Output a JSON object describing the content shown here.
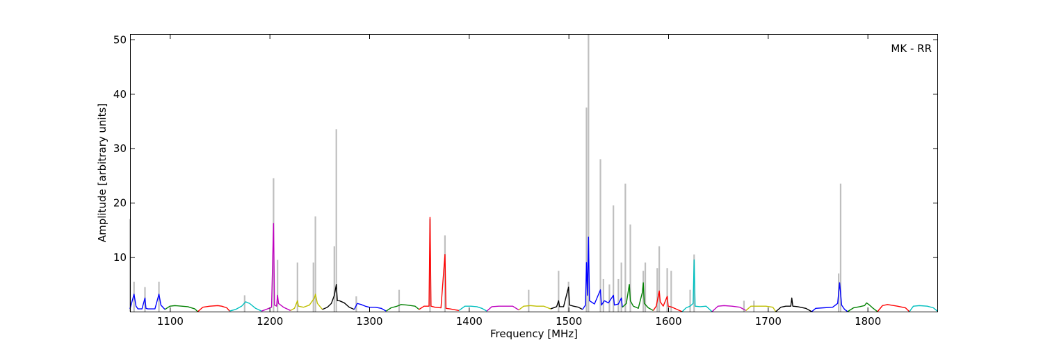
{
  "chart_data": {
    "type": "line",
    "title": "",
    "annotation": "MK - RR",
    "xlabel": "Frequency [MHz]",
    "ylabel": "Amplitude [arbitrary units]",
    "xlim": [
      1060,
      1870
    ],
    "ylim": [
      0,
      51
    ],
    "grid": false,
    "x_ticks": [
      1100,
      1200,
      1300,
      1400,
      1500,
      1600,
      1700,
      1800
    ],
    "y_ticks": [
      10,
      20,
      30,
      40,
      50
    ],
    "colors": {
      "raw": "#bfbfbf",
      "axis": "#000000"
    },
    "raw_spikes": [
      {
        "x": 1060,
        "y": 17
      },
      {
        "x": 1064,
        "y": 5.5
      },
      {
        "x": 1075,
        "y": 4.5
      },
      {
        "x": 1089,
        "y": 5.5
      },
      {
        "x": 1175,
        "y": 3.0
      },
      {
        "x": 1204,
        "y": 24.5
      },
      {
        "x": 1208,
        "y": 9.5
      },
      {
        "x": 1228,
        "y": 9.0
      },
      {
        "x": 1244,
        "y": 9.0
      },
      {
        "x": 1246,
        "y": 17.5
      },
      {
        "x": 1265,
        "y": 12.0
      },
      {
        "x": 1267,
        "y": 33.5
      },
      {
        "x": 1287,
        "y": 2.8
      },
      {
        "x": 1330,
        "y": 4.0
      },
      {
        "x": 1361,
        "y": 17.0
      },
      {
        "x": 1376,
        "y": 14.0
      },
      {
        "x": 1460,
        "y": 4.0
      },
      {
        "x": 1490,
        "y": 7.5
      },
      {
        "x": 1500,
        "y": 5.5
      },
      {
        "x": 1518,
        "y": 37.5
      },
      {
        "x": 1520,
        "y": 51
      },
      {
        "x": 1532,
        "y": 28.0
      },
      {
        "x": 1535,
        "y": 6.0
      },
      {
        "x": 1541,
        "y": 5.0
      },
      {
        "x": 1545,
        "y": 19.5
      },
      {
        "x": 1550,
        "y": 6.0
      },
      {
        "x": 1553,
        "y": 9.0
      },
      {
        "x": 1557,
        "y": 23.5
      },
      {
        "x": 1562,
        "y": 16.0
      },
      {
        "x": 1575,
        "y": 7.5
      },
      {
        "x": 1577,
        "y": 9.0
      },
      {
        "x": 1589,
        "y": 8.0
      },
      {
        "x": 1591,
        "y": 12.0
      },
      {
        "x": 1599,
        "y": 8.0
      },
      {
        "x": 1603,
        "y": 7.5
      },
      {
        "x": 1622,
        "y": 4.0
      },
      {
        "x": 1626,
        "y": 10.5
      },
      {
        "x": 1676,
        "y": 2.0
      },
      {
        "x": 1686,
        "y": 2.0
      },
      {
        "x": 1771,
        "y": 7.0
      },
      {
        "x": 1773,
        "y": 23.5
      }
    ],
    "series": [
      {
        "color": "#0000ff",
        "x": [
          1060,
          1064,
          1066,
          1068,
          1072,
          1075,
          1076,
          1078,
          1085,
          1089,
          1091,
          1095
        ],
        "y": [
          0.5,
          3.2,
          1.0,
          0.5,
          0.5,
          2.5,
          0.6,
          0.5,
          0.5,
          3.2,
          1.2,
          0.4
        ]
      },
      {
        "color": "#008000",
        "x": [
          1095,
          1100,
          1105,
          1112,
          1118,
          1125,
          1128
        ],
        "y": [
          0.4,
          1.0,
          1.1,
          1.0,
          0.9,
          0.5,
          0.0
        ]
      },
      {
        "color": "#ff0000",
        "x": [
          1128,
          1133,
          1140,
          1148,
          1152,
          1157,
          1160
        ],
        "y": [
          0.0,
          0.8,
          1.0,
          1.1,
          1.0,
          0.7,
          0.1
        ]
      },
      {
        "color": "#00bfbf",
        "x": [
          1160,
          1166,
          1172,
          1176,
          1180,
          1186,
          1192
        ],
        "y": [
          0.1,
          0.4,
          1.0,
          1.8,
          1.5,
          0.6,
          0.1
        ]
      },
      {
        "color": "#bf00bf",
        "x": [
          1192,
          1198,
          1202,
          1204,
          1205,
          1207,
          1208,
          1209,
          1214,
          1221
        ],
        "y": [
          0.1,
          0.5,
          0.8,
          16.2,
          1.2,
          1.0,
          3.0,
          1.5,
          0.8,
          0.2
        ]
      },
      {
        "color": "#bfbf00",
        "x": [
          1221,
          1225,
          1228,
          1229,
          1234,
          1240,
          1245,
          1246,
          1248,
          1253
        ],
        "y": [
          0.2,
          0.6,
          2.0,
          1.0,
          0.8,
          1.2,
          2.5,
          3.2,
          1.5,
          0.4
        ]
      },
      {
        "color": "#000000",
        "x": [
          1253,
          1258,
          1262,
          1265,
          1267,
          1268,
          1270,
          1275,
          1280,
          1285
        ],
        "y": [
          0.4,
          0.8,
          1.5,
          3.0,
          5.0,
          2.0,
          2.0,
          1.6,
          0.8,
          0.4
        ]
      },
      {
        "color": "#0000ff",
        "x": [
          1285,
          1288,
          1292,
          1296,
          1300,
          1306,
          1312,
          1317
        ],
        "y": [
          0.4,
          1.5,
          1.3,
          1.0,
          0.8,
          0.8,
          0.6,
          0.1
        ]
      },
      {
        "color": "#008000",
        "x": [
          1317,
          1322,
          1328,
          1332,
          1338,
          1346,
          1350
        ],
        "y": [
          0.1,
          0.7,
          1.0,
          1.3,
          1.2,
          1.0,
          0.4
        ]
      },
      {
        "color": "#ff0000",
        "x": [
          1350,
          1355,
          1360,
          1361,
          1362,
          1366,
          1372,
          1376,
          1377,
          1381,
          1390
        ],
        "y": [
          0.4,
          1.0,
          1.0,
          17.3,
          1.0,
          0.8,
          0.7,
          10.5,
          0.6,
          0.5,
          0.2
        ]
      },
      {
        "color": "#00bfbf",
        "x": [
          1390,
          1396,
          1402,
          1408,
          1413,
          1418
        ],
        "y": [
          0.2,
          1.0,
          1.0,
          0.9,
          0.6,
          0.1
        ]
      },
      {
        "color": "#bf00bf",
        "x": [
          1418,
          1423,
          1430,
          1438,
          1444,
          1450
        ],
        "y": [
          0.1,
          0.9,
          1.0,
          1.0,
          1.0,
          0.3
        ]
      },
      {
        "color": "#bfbf00",
        "x": [
          1450,
          1455,
          1462,
          1468,
          1475,
          1482
        ],
        "y": [
          0.3,
          1.0,
          1.1,
          1.0,
          1.0,
          0.5
        ]
      },
      {
        "color": "#000000",
        "x": [
          1482,
          1488,
          1490,
          1491,
          1495,
          1500,
          1501,
          1505,
          1510,
          1514
        ],
        "y": [
          0.5,
          0.9,
          2.0,
          0.9,
          0.9,
          4.5,
          1.2,
          1.0,
          0.8,
          0.4
        ]
      },
      {
        "color": "#0000ff",
        "x": [
          1514,
          1517,
          1518,
          1519,
          1520,
          1521,
          1526,
          1532,
          1533,
          1536,
          1540,
          1545,
          1546,
          1550,
          1553,
          1554
        ],
        "y": [
          0.4,
          1.2,
          9.0,
          3.0,
          13.7,
          2.0,
          1.4,
          4.0,
          1.2,
          2.0,
          1.6,
          3.0,
          1.2,
          1.4,
          2.5,
          0.8
        ]
      },
      {
        "color": "#008000",
        "x": [
          1554,
          1558,
          1561,
          1562,
          1565,
          1570,
          1574,
          1575,
          1576,
          1580,
          1585
        ],
        "y": [
          0.8,
          1.5,
          5.0,
          2.0,
          1.0,
          0.6,
          3.5,
          5.3,
          1.5,
          0.7,
          0.2
        ]
      },
      {
        "color": "#ff0000",
        "x": [
          1585,
          1588,
          1591,
          1592,
          1595,
          1599,
          1600,
          1604,
          1610,
          1614
        ],
        "y": [
          0.2,
          1.0,
          3.8,
          1.8,
          1.0,
          2.8,
          1.0,
          0.8,
          0.3,
          0.0
        ]
      },
      {
        "color": "#00bfbf",
        "x": [
          1614,
          1618,
          1622,
          1625,
          1626,
          1627,
          1632,
          1638,
          1644
        ],
        "y": [
          0.0,
          0.7,
          1.0,
          1.5,
          9.5,
          1.0,
          0.9,
          1.0,
          0.0
        ]
      },
      {
        "color": "#bf00bf",
        "x": [
          1644,
          1650,
          1656,
          1664,
          1672,
          1678
        ],
        "y": [
          0.0,
          1.0,
          1.1,
          1.0,
          0.8,
          0.2
        ]
      },
      {
        "color": "#bfbf00",
        "x": [
          1678,
          1683,
          1690,
          1698,
          1705,
          1708
        ],
        "y": [
          0.2,
          1.0,
          1.0,
          1.0,
          0.8,
          0.0
        ]
      },
      {
        "color": "#000000",
        "x": [
          1708,
          1713,
          1718,
          1723,
          1724,
          1725,
          1730,
          1738,
          1744
        ],
        "y": [
          0.0,
          0.8,
          1.0,
          1.0,
          2.5,
          1.0,
          0.9,
          0.6,
          0.0
        ]
      },
      {
        "color": "#0000ff",
        "x": [
          1744,
          1748,
          1756,
          1765,
          1770,
          1772,
          1774,
          1777,
          1780
        ],
        "y": [
          0.0,
          0.6,
          0.7,
          0.8,
          1.5,
          5.3,
          1.2,
          0.4,
          0.0
        ]
      },
      {
        "color": "#008000",
        "x": [
          1780,
          1786,
          1792,
          1797,
          1799,
          1802,
          1805,
          1810
        ],
        "y": [
          0.0,
          0.7,
          0.9,
          1.1,
          1.6,
          1.2,
          0.7,
          0.0
        ]
      },
      {
        "color": "#ff0000",
        "x": [
          1810,
          1815,
          1820,
          1830,
          1838,
          1842
        ],
        "y": [
          0.0,
          1.1,
          1.3,
          1.0,
          0.7,
          0.0
        ]
      },
      {
        "color": "#00bfbf",
        "x": [
          1842,
          1846,
          1852,
          1860,
          1866,
          1870
        ],
        "y": [
          0.0,
          1.0,
          1.1,
          1.0,
          0.7,
          0.1
        ]
      }
    ]
  }
}
